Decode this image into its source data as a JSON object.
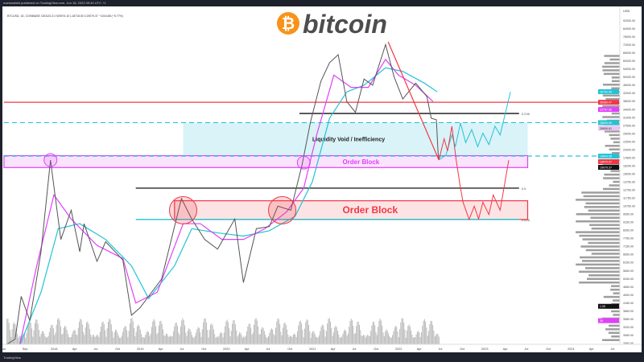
{
  "header": {
    "published": "marksrabbit published on TradingView.com, Jun 18, 2022 09:40 UTC +1"
  },
  "symbol_line": "BTCUSD, 1D, COINBASE  O20120.21  H20974.10  L18718.00  C19079.37  −1044.88 (−5.77%)",
  "logo": {
    "text": "bitcoin",
    "glyph": "₿",
    "color": "#f7931a"
  },
  "footer": {
    "brand": "TradingView"
  },
  "colors": {
    "red": "#f23645",
    "cyan": "#22c3d6",
    "magenta": "#e040fb",
    "black": "#111111"
  },
  "chart_data": {
    "type": "line",
    "title": "BTCUSD 1D log chart",
    "yscale": "log",
    "ylim": [
      2500,
      100000
    ],
    "xlim": [
      2017.42,
      2024.6
    ],
    "y_ticks": [
      "92000.00",
      "84000.00",
      "78000.00",
      "72000.00",
      "66000.00",
      "60000.00",
      "54000.00",
      "50000.00",
      "46000.00",
      "42000.00",
      "38000.00",
      "34000.00",
      "31000.00",
      "27500.00",
      "25000.00",
      "22500.00",
      "20000.00",
      "17800.00",
      "16200.00",
      "15000.00",
      "13750.00",
      "12750.00",
      "11750.00",
      "10750.00",
      "9950.00",
      "9150.00",
      "8350.00",
      "7750.00",
      "7150.00",
      "6650.00",
      "6150.00",
      "5650.00",
      "5250.00",
      "4850.00",
      "4500.00",
      "4180.00",
      "3860.00",
      "3580.00",
      "3320.00",
      "3080.00",
      "2860.00",
      "2660.00"
    ],
    "x_ticks": [
      {
        "label": "Jun",
        "t": 2017.42
      },
      {
        "label": "Sep",
        "t": 2017.67
      },
      {
        "label": "2018",
        "t": 2018.0
      },
      {
        "label": "Apr",
        "t": 2018.25
      },
      {
        "label": "Jul",
        "t": 2018.5
      },
      {
        "label": "Oct",
        "t": 2018.75
      },
      {
        "label": "2019",
        "t": 2019.0
      },
      {
        "label": "Apr",
        "t": 2019.25
      },
      {
        "label": "Jul",
        "t": 2019.5
      },
      {
        "label": "Oct",
        "t": 2019.75
      },
      {
        "label": "2020",
        "t": 2020.0
      },
      {
        "label": "Apr",
        "t": 2020.25
      },
      {
        "label": "Jul",
        "t": 2020.5
      },
      {
        "label": "Oct",
        "t": 2020.75
      },
      {
        "label": "2021",
        "t": 2021.0
      },
      {
        "label": "Apr",
        "t": 2021.25
      },
      {
        "label": "Jul",
        "t": 2021.5
      },
      {
        "label": "Oct",
        "t": 2021.75
      },
      {
        "label": "2022",
        "t": 2022.0
      },
      {
        "label": "Apr",
        "t": 2022.25
      },
      {
        "label": "Jul",
        "t": 2022.5
      },
      {
        "label": "Oct",
        "t": 2022.75
      },
      {
        "label": "2023",
        "t": 2023.0
      },
      {
        "label": "Apr",
        "t": 2023.25
      },
      {
        "label": "Jul",
        "t": 2023.5
      },
      {
        "label": "Oct",
        "t": 2023.75
      },
      {
        "label": "2024",
        "t": 2024.0
      },
      {
        "label": "Apr",
        "t": 2024.25
      },
      {
        "label": "Jul",
        "t": 2024.5
      }
    ],
    "price": [
      [
        2017.42,
        2500
      ],
      [
        2017.55,
        2700
      ],
      [
        2017.62,
        4300
      ],
      [
        2017.72,
        3300
      ],
      [
        2017.85,
        7000
      ],
      [
        2017.96,
        19000
      ],
      [
        2018.08,
        8000
      ],
      [
        2018.2,
        11000
      ],
      [
        2018.3,
        7000
      ],
      [
        2018.35,
        9500
      ],
      [
        2018.5,
        6300
      ],
      [
        2018.6,
        7800
      ],
      [
        2018.8,
        6400
      ],
      [
        2018.9,
        3500
      ],
      [
        2019.0,
        3800
      ],
      [
        2019.25,
        5200
      ],
      [
        2019.48,
        12500
      ],
      [
        2019.6,
        10000
      ],
      [
        2019.75,
        8000
      ],
      [
        2019.9,
        7200
      ],
      [
        2020.1,
        10000
      ],
      [
        2020.2,
        5000
      ],
      [
        2020.35,
        9000
      ],
      [
        2020.5,
        9200
      ],
      [
        2020.6,
        11500
      ],
      [
        2020.75,
        11000
      ],
      [
        2020.88,
        18000
      ],
      [
        2020.98,
        29000
      ],
      [
        2021.1,
        45000
      ],
      [
        2021.2,
        55000
      ],
      [
        2021.3,
        60000
      ],
      [
        2021.4,
        36000
      ],
      [
        2021.5,
        32000
      ],
      [
        2021.6,
        46000
      ],
      [
        2021.7,
        43000
      ],
      [
        2021.85,
        67000
      ],
      [
        2021.95,
        47000
      ],
      [
        2022.05,
        37000
      ],
      [
        2022.2,
        44000
      ],
      [
        2022.33,
        38000
      ],
      [
        2022.38,
        30000
      ],
      [
        2022.44,
        29500
      ],
      [
        2022.46,
        20500
      ],
      [
        2022.47,
        19079
      ]
    ],
    "ma_magenta": [
      [
        2017.6,
        2500
      ],
      [
        2017.8,
        6000
      ],
      [
        2018.0,
        13000
      ],
      [
        2018.2,
        10000
      ],
      [
        2018.5,
        7500
      ],
      [
        2018.8,
        6500
      ],
      [
        2018.95,
        4000
      ],
      [
        2019.2,
        4500
      ],
      [
        2019.5,
        9500
      ],
      [
        2019.7,
        9500
      ],
      [
        2019.95,
        8000
      ],
      [
        2020.2,
        8000
      ],
      [
        2020.45,
        9000
      ],
      [
        2020.7,
        10800
      ],
      [
        2020.9,
        14000
      ],
      [
        2021.05,
        25000
      ],
      [
        2021.25,
        48000
      ],
      [
        2021.45,
        42000
      ],
      [
        2021.65,
        42000
      ],
      [
        2021.85,
        57000
      ],
      [
        2022.0,
        48000
      ],
      [
        2022.2,
        43000
      ],
      [
        2022.4,
        36000
      ]
    ],
    "ma_cyan": [
      [
        2017.6,
        2500
      ],
      [
        2017.85,
        4500
      ],
      [
        2018.05,
        9000
      ],
      [
        2018.3,
        9500
      ],
      [
        2018.6,
        8000
      ],
      [
        2018.9,
        6000
      ],
      [
        2019.1,
        4200
      ],
      [
        2019.4,
        6000
      ],
      [
        2019.6,
        9000
      ],
      [
        2019.9,
        8600
      ],
      [
        2020.2,
        8300
      ],
      [
        2020.5,
        8800
      ],
      [
        2020.8,
        10300
      ],
      [
        2021.0,
        15000
      ],
      [
        2021.2,
        30000
      ],
      [
        2021.4,
        40000
      ],
      [
        2021.6,
        43000
      ],
      [
        2021.85,
        52000
      ],
      [
        2022.05,
        50000
      ],
      [
        2022.3,
        44000
      ],
      [
        2022.45,
        40000
      ]
    ],
    "trendline": [
      [
        2021.88,
        69000
      ],
      [
        2022.47,
        19000
      ]
    ],
    "projection_cyan": [
      [
        2022.47,
        19079
      ],
      [
        2022.55,
        20000
      ],
      [
        2022.62,
        25000
      ],
      [
        2022.66,
        22000
      ],
      [
        2022.72,
        28500
      ],
      [
        2022.78,
        23000
      ],
      [
        2022.85,
        26500
      ],
      [
        2022.92,
        22000
      ],
      [
        2022.98,
        25500
      ],
      [
        2023.05,
        22500
      ],
      [
        2023.12,
        27500
      ],
      [
        2023.18,
        25000
      ],
      [
        2023.3,
        40000
      ]
    ],
    "projection_red": [
      [
        2022.47,
        19079
      ],
      [
        2022.53,
        24000
      ],
      [
        2022.57,
        21000
      ],
      [
        2022.62,
        27500
      ],
      [
        2022.67,
        19000
      ],
      [
        2022.72,
        14000
      ],
      [
        2022.75,
        12000
      ],
      [
        2022.82,
        9950
      ],
      [
        2022.88,
        11500
      ],
      [
        2022.93,
        10000
      ],
      [
        2022.98,
        12000
      ],
      [
        2023.05,
        10500
      ],
      [
        2023.1,
        13000
      ],
      [
        2023.18,
        11000
      ],
      [
        2023.28,
        19000
      ]
    ],
    "levels": [
      {
        "name": "red-resistance",
        "price": 35700,
        "color": "#f23645",
        "style": "solid",
        "t0": 2017.42,
        "t1": 2024.45
      },
      {
        "name": "fib-0236",
        "price": 31600,
        "color": "#111111",
        "style": "solid",
        "t0": 2020.85,
        "t1": 2023.4,
        "label": "0.236"
      },
      {
        "name": "cyan-upper",
        "price": 28600,
        "color": "#22c3d6",
        "style": "dashed",
        "t0": 2017.42,
        "t1": 2024.45
      },
      {
        "name": "cyan-lower",
        "price": 19860,
        "color": "#22c3d6",
        "style": "dashed",
        "t0": 2017.42,
        "t1": 2024.45,
        "label": "0.382"
      },
      {
        "name": "fib-05",
        "price": 14000,
        "color": "#111111",
        "style": "solid",
        "t0": 2018.95,
        "t1": 2023.4,
        "label": "0.5"
      },
      {
        "name": "fib-0618",
        "price": 9950,
        "color": "#22c3d6",
        "style": "solid",
        "t0": 2018.95,
        "t1": 2023.4,
        "label": "0.618"
      }
    ],
    "zones": [
      {
        "name": "liquidity-void",
        "label": "Liquidity Void / Inefficiency",
        "top": 28600,
        "bottom": 20100,
        "t0": 2019.5,
        "t1": 2023.5,
        "fill": "#d9f3f8",
        "stroke": "none",
        "text_color": "#222"
      },
      {
        "name": "order-block-magenta",
        "label": "Order Block",
        "top": 19950,
        "bottom": 17520,
        "t0": 2017.42,
        "t1": 2023.5,
        "fill": "#fbe3fd",
        "stroke": "#e040fb",
        "text_color": "#e040fb"
      },
      {
        "name": "order-block-red",
        "label": "Order Block",
        "top": 12200,
        "bottom": 9950,
        "t0": 2019.4,
        "t1": 2023.5,
        "fill": "#fde4e4",
        "stroke": "#f23645",
        "text_color": "#f23645"
      }
    ],
    "circles": [
      {
        "t": 2017.96,
        "price": 19000,
        "color": "#e040fb"
      },
      {
        "t": 2020.9,
        "price": 18500,
        "color": "#e040fb"
      },
      {
        "t": 2019.5,
        "price": 11000,
        "color": "#f23645"
      },
      {
        "t": 2020.65,
        "price": 11000,
        "color": "#f23645"
      }
    ],
    "price_tags": [
      {
        "price": 40070,
        "text": "39752.56",
        "bg": "#22c3d6"
      },
      {
        "price": 35700,
        "text": "36080.47",
        "bg": "#f23645"
      },
      {
        "price": 33000,
        "text": "33757.56",
        "bg": "#e040fb"
      },
      {
        "price": 28600,
        "text": "28805.55",
        "bg": "#22c3d6"
      },
      {
        "price": 27600,
        "text": "28606.61",
        "bg": "#e8c6f0"
      },
      {
        "price": 19860,
        "text": "19894.58",
        "bg": "#22c3d6"
      },
      {
        "price": 19400,
        "text": "19079.37",
        "bg": "#f23645"
      },
      {
        "price": 18500,
        "text": "19079.37",
        "bg": "#111111"
      },
      {
        "price": 3860,
        "text": "1.0K",
        "bg": "#111111"
      },
      {
        "price": 3300,
        "text": "3K",
        "bg": "#e040fb"
      }
    ]
  }
}
